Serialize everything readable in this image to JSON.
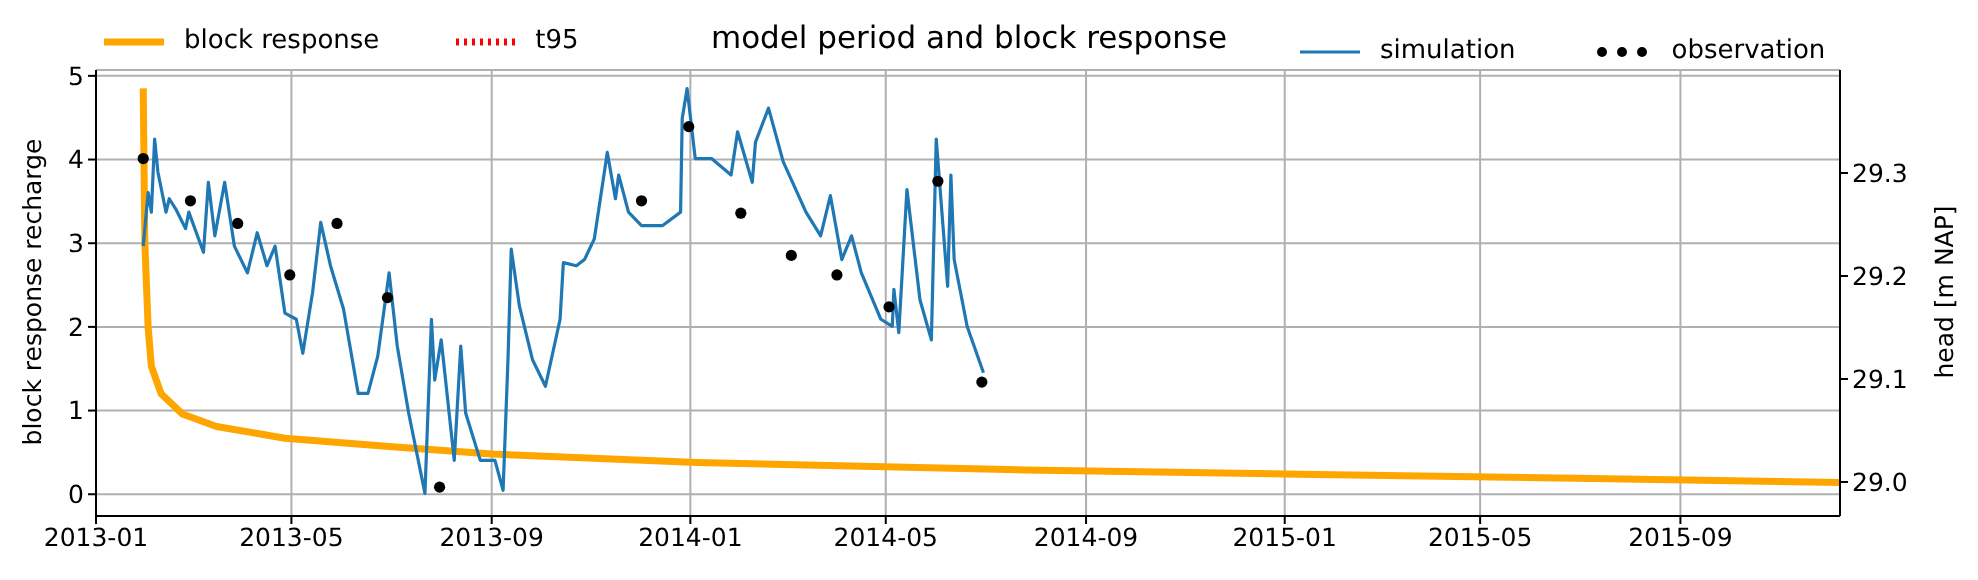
{
  "chart_data": {
    "type": "line",
    "title": "model period and block response",
    "ylabel": "block response recharge",
    "y2label": "head [m NAP]",
    "xlim": [
      "2013-01-01",
      "2015-12-08"
    ],
    "xticks": [
      "2013-01",
      "2013-05",
      "2013-09",
      "2014-01",
      "2014-05",
      "2014-09",
      "2015-01",
      "2015-05",
      "2015-09"
    ],
    "ylim": [
      -0.26,
      5.07
    ],
    "yticks": [
      0,
      1,
      2,
      3,
      4,
      5
    ],
    "y2lim": [
      28.967,
      29.4
    ],
    "y2ticks": [
      {
        "value": 29,
        "label": "29.0"
      },
      {
        "value": 29.1,
        "label": "29.1"
      },
      {
        "value": 29.2,
        "label": "29.2"
      },
      {
        "value": 29.3,
        "label": "29.3"
      }
    ],
    "grid": true,
    "legend": "top",
    "series": [
      {
        "name": "block response",
        "color": "#ffa500",
        "x": [
          "2013-01-30",
          "2013-01-31",
          "2013-02-02",
          "2013-02-04",
          "2013-02-10",
          "2013-02-23",
          "2013-03-16",
          "2013-04-27",
          "2013-06-30",
          "2013-09-01",
          "2014-01-05",
          "2014-07-26",
          "2015-01-10",
          "2015-06-29",
          "2015-12-08"
        ],
        "values": [
          4.85,
          3.0,
          2.0,
          1.53,
          1.2,
          0.96,
          0.81,
          0.67,
          0.57,
          0.48,
          0.38,
          0.29,
          0.24,
          0.19,
          0.14
        ]
      },
      {
        "name": "t95",
        "color": "#ff0000",
        "line_style": "dotted"
      },
      {
        "name": "simulation",
        "axis": "y2",
        "color": "#1f77b4",
        "x": [
          "2013-01-30",
          "2013-02-02",
          "2013-02-04",
          "2013-02-06",
          "2013-02-08",
          "2013-02-13",
          "2013-02-15",
          "2013-02-19",
          "2013-02-25",
          "2013-02-27",
          "2013-03-08",
          "2013-03-11",
          "2013-03-15",
          "2013-03-21",
          "2013-03-27",
          "2013-04-04",
          "2013-04-10",
          "2013-04-16",
          "2013-04-21",
          "2013-04-27",
          "2013-05-04",
          "2013-05-08",
          "2013-05-14",
          "2013-05-19",
          "2013-05-25",
          "2013-06-02",
          "2013-06-11",
          "2013-06-17",
          "2013-06-23",
          "2013-06-30",
          "2013-07-05",
          "2013-07-12",
          "2013-07-22",
          "2013-07-26",
          "2013-07-28",
          "2013-08-01",
          "2013-08-09",
          "2013-08-13",
          "2013-08-16",
          "2013-08-25",
          "2013-09-03",
          "2013-09-08",
          "2013-09-11",
          "2013-09-13",
          "2013-09-18",
          "2013-09-26",
          "2013-10-04",
          "2013-10-13",
          "2013-10-15",
          "2013-10-23",
          "2013-10-28",
          "2013-11-03",
          "2013-11-11",
          "2013-11-16",
          "2013-11-18",
          "2013-11-24",
          "2013-12-02",
          "2013-12-15",
          "2013-12-26",
          "2013-12-27",
          "2013-12-30",
          "2014-01-04",
          "2014-01-14",
          "2014-01-26",
          "2014-01-30",
          "2014-02-08",
          "2014-02-10",
          "2014-02-18",
          "2014-02-27",
          "2014-03-13",
          "2014-03-22",
          "2014-03-28",
          "2014-04-04",
          "2014-04-10",
          "2014-04-16",
          "2014-04-28",
          "2014-05-05",
          "2014-05-06",
          "2014-05-09",
          "2014-05-14",
          "2014-05-22",
          "2014-05-29",
          "2014-06-01",
          "2014-06-08",
          "2014-06-10",
          "2014-06-12",
          "2014-06-20",
          "2014-06-30"
        ],
        "values": [
          29.229,
          29.281,
          29.262,
          29.333,
          29.301,
          29.262,
          29.275,
          29.265,
          29.246,
          29.262,
          29.223,
          29.291,
          29.239,
          29.291,
          29.229,
          29.203,
          29.242,
          29.21,
          29.229,
          29.164,
          29.158,
          29.125,
          29.184,
          29.252,
          29.21,
          29.168,
          29.086,
          29.086,
          29.122,
          29.203,
          29.132,
          29.067,
          28.989,
          29.158,
          29.099,
          29.138,
          29.021,
          29.132,
          29.067,
          29.021,
          29.021,
          28.992,
          29.119,
          29.226,
          29.171,
          29.119,
          29.093,
          29.158,
          29.213,
          29.21,
          29.216,
          29.236,
          29.32,
          29.275,
          29.298,
          29.262,
          29.249,
          29.249,
          29.262,
          29.353,
          29.382,
          29.314,
          29.314,
          29.298,
          29.34,
          29.291,
          29.33,
          29.363,
          29.311,
          29.262,
          29.239,
          29.278,
          29.216,
          29.239,
          29.203,
          29.158,
          29.151,
          29.187,
          29.145,
          29.284,
          29.177,
          29.138,
          29.333,
          29.19,
          29.298,
          29.216,
          29.151,
          29.106
        ]
      },
      {
        "name": "observation",
        "type": "scatter",
        "axis": "y2",
        "color": "#000000",
        "marker": "circle",
        "x": [
          "2013-01-30",
          "2013-02-28",
          "2013-03-29",
          "2013-04-30",
          "2013-05-29",
          "2013-06-29",
          "2013-07-31",
          "2013-12-02",
          "2013-12-31",
          "2014-02-01",
          "2014-03-04",
          "2014-04-01",
          "2014-05-03",
          "2014-06-02",
          "2014-06-29"
        ],
        "values": [
          29.314,
          29.273,
          29.251,
          29.201,
          29.251,
          29.179,
          28.995,
          29.273,
          29.345,
          29.261,
          29.22,
          29.201,
          29.17,
          29.292,
          29.097
        ]
      }
    ]
  }
}
